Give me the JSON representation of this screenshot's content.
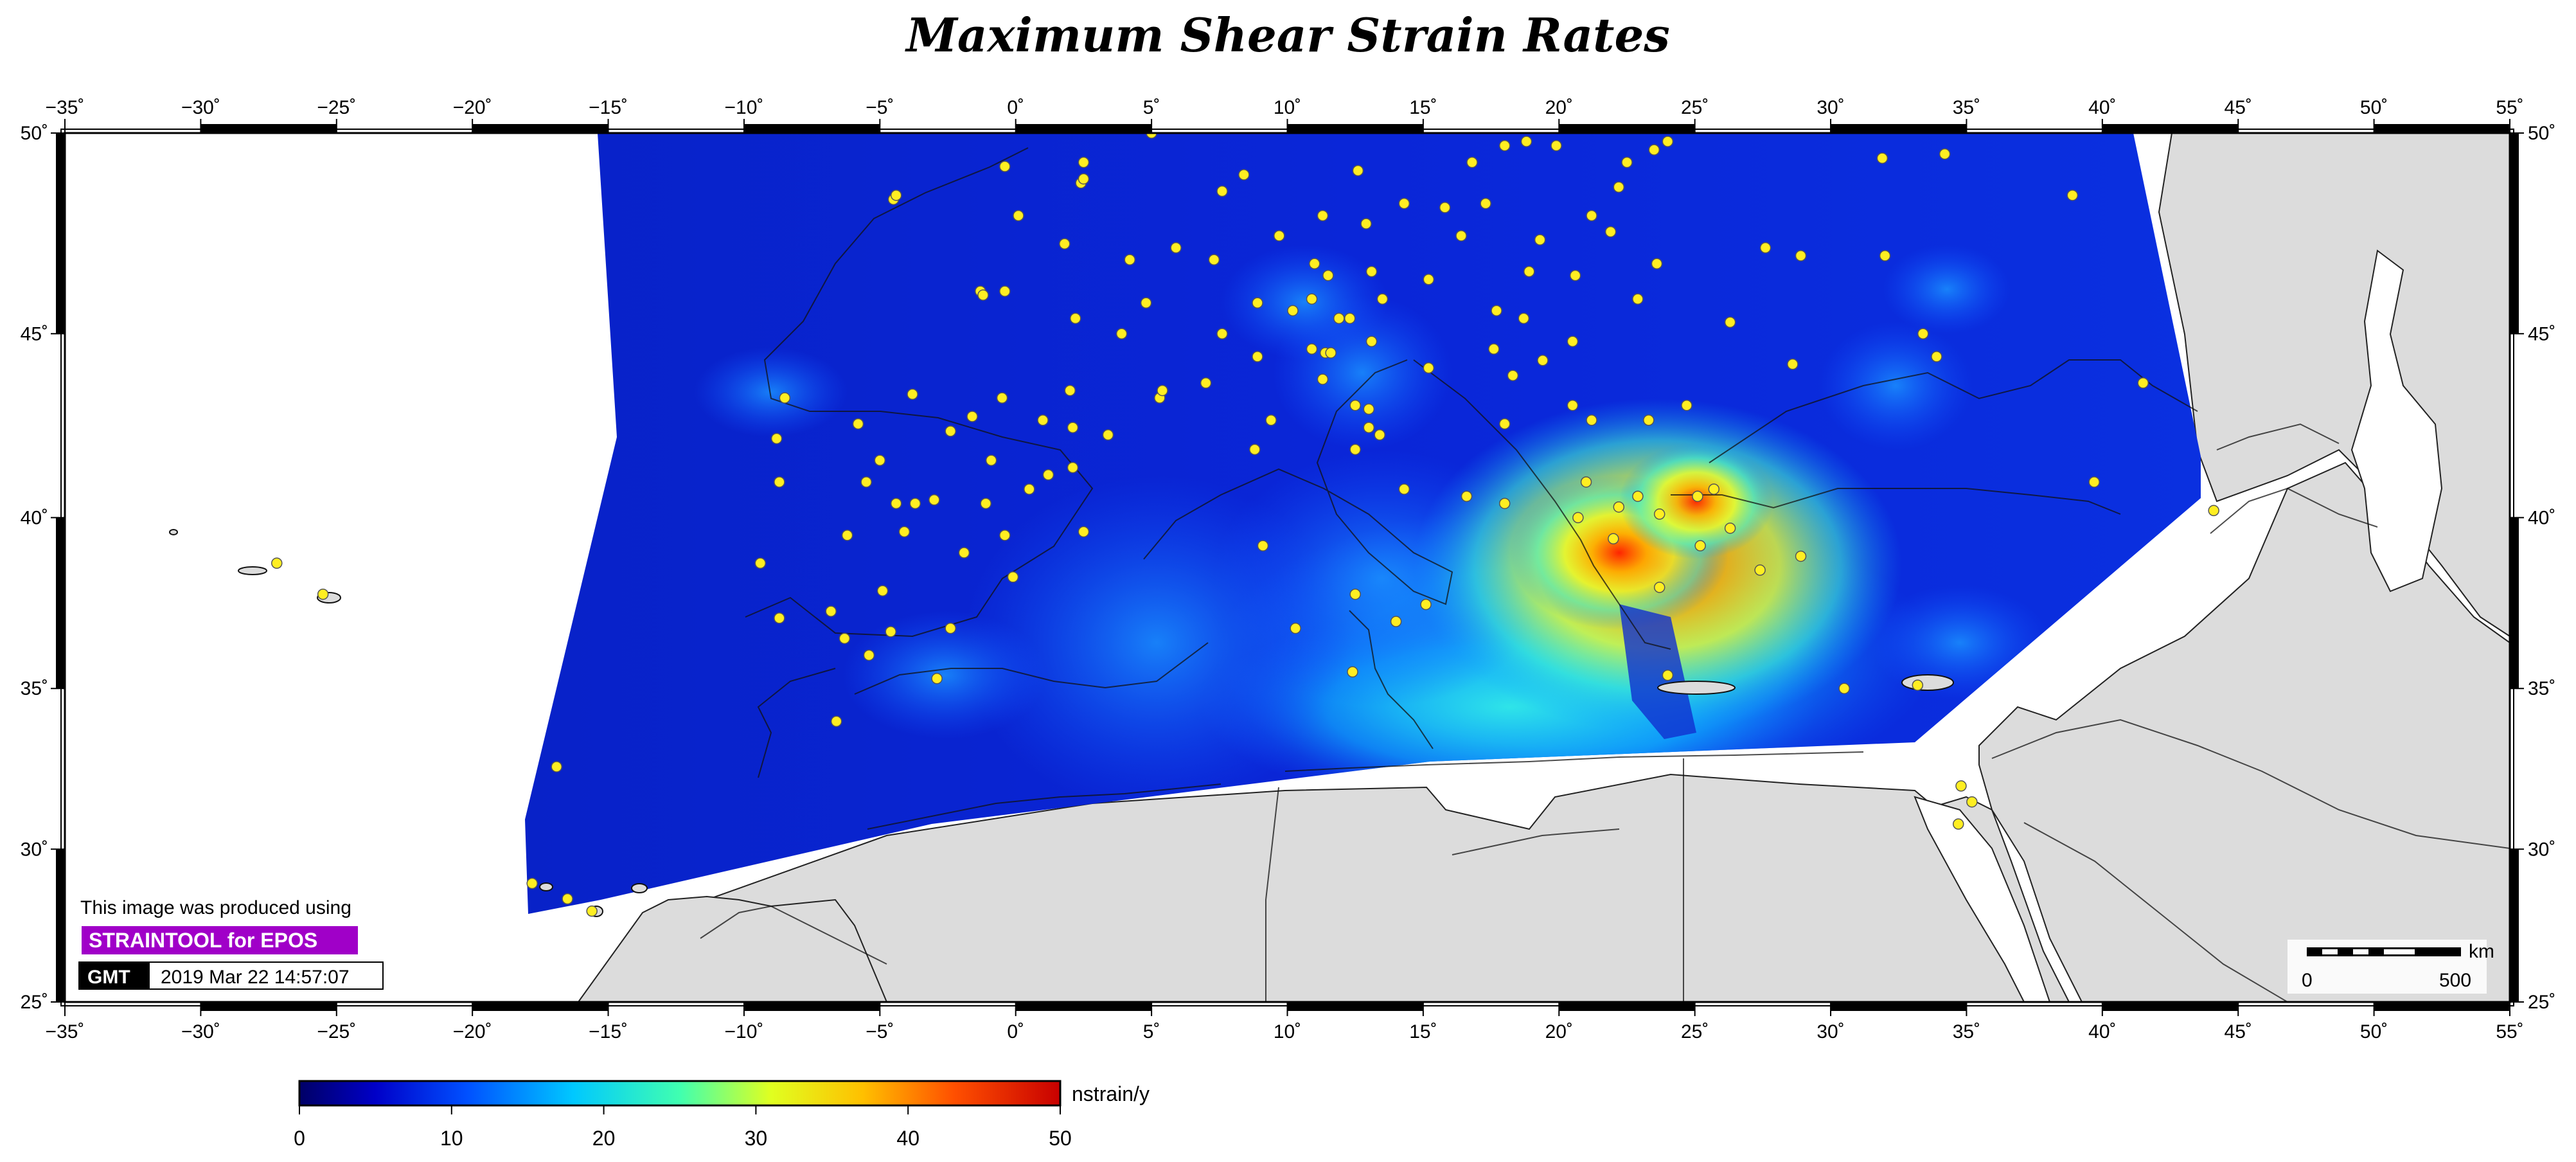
{
  "title": "Maximum Shear Strain Rates",
  "axes": {
    "x_ticks": [
      "−35˚",
      "−30˚",
      "−25˚",
      "−20˚",
      "−15˚",
      "−10˚",
      "−5˚",
      "0˚",
      "5˚",
      "10˚",
      "15˚",
      "20˚",
      "25˚",
      "30˚",
      "35˚",
      "40˚",
      "45˚",
      "50˚",
      "55˚"
    ],
    "y_ticks": [
      "25˚",
      "30˚",
      "35˚",
      "40˚",
      "45˚",
      "50˚"
    ],
    "lon_range": [
      -35,
      55
    ],
    "lat_range": [
      25,
      50
    ]
  },
  "colorbar": {
    "unit": "nstrain/y",
    "ticks": [
      "0",
      "10",
      "20",
      "30",
      "40",
      "50"
    ],
    "range": [
      0,
      50
    ]
  },
  "credits": {
    "line": "This image was produced using",
    "badge": "STRAINTOOL for EPOS",
    "logo": "GMT",
    "timestamp": "2019 Mar 22 14:57:07"
  },
  "scale_bar": {
    "unit": "km",
    "start": "0",
    "end": "500"
  },
  "colors": {
    "land": "#dcdcdc",
    "station": "#ffee22",
    "low_strain": "#0a22d8",
    "high_strain": "#e01010"
  },
  "hotspots": [
    {
      "lon": 22.5,
      "lat": 39.3,
      "value": 46
    },
    {
      "lon": 25.5,
      "lat": 40.3,
      "value": 40
    },
    {
      "lon": 24.0,
      "lat": 37.5,
      "value": 22
    },
    {
      "lon": 12.5,
      "lat": 43.0,
      "value": 14
    },
    {
      "lon": -8.5,
      "lat": 43.2,
      "value": 12
    }
  ],
  "stations": [
    {
      "lon": -27.2,
      "lat": 38.7
    },
    {
      "lon": -25.5,
      "lat": 37.8
    },
    {
      "lon": -16.9,
      "lat": 32.6
    },
    {
      "lon": -17.8,
      "lat": 28.9
    },
    {
      "lon": -16.5,
      "lat": 28.4
    },
    {
      "lon": -15.6,
      "lat": 28.0
    },
    {
      "lon": -8.5,
      "lat": 43.3
    },
    {
      "lon": -8.8,
      "lat": 42.2
    },
    {
      "lon": -8.7,
      "lat": 41.0
    },
    {
      "lon": -9.4,
      "lat": 38.7
    },
    {
      "lon": -8.7,
      "lat": 37.1
    },
    {
      "lon": -6.8,
      "lat": 37.3
    },
    {
      "lon": -6.3,
      "lat": 36.5
    },
    {
      "lon": -5.4,
      "lat": 36.0
    },
    {
      "lon": -4.6,
      "lat": 36.7
    },
    {
      "lon": -2.9,
      "lat": 35.3
    },
    {
      "lon": -6.6,
      "lat": 34.0
    },
    {
      "lon": -2.4,
      "lat": 36.8
    },
    {
      "lon": -4.9,
      "lat": 37.9
    },
    {
      "lon": -6.2,
      "lat": 39.5
    },
    {
      "lon": -5.5,
      "lat": 41.0
    },
    {
      "lon": -5.0,
      "lat": 41.6
    },
    {
      "lon": -4.4,
      "lat": 40.4
    },
    {
      "lon": -3.7,
      "lat": 40.4
    },
    {
      "lon": -3.0,
      "lat": 40.5
    },
    {
      "lon": -4.1,
      "lat": 39.6
    },
    {
      "lon": -1.9,
      "lat": 39.0
    },
    {
      "lon": -0.4,
      "lat": 39.5
    },
    {
      "lon": -0.1,
      "lat": 38.3
    },
    {
      "lon": -1.1,
      "lat": 40.4
    },
    {
      "lon": 0.5,
      "lat": 40.8
    },
    {
      "lon": 1.2,
      "lat": 41.2
    },
    {
      "lon": 2.1,
      "lat": 41.4
    },
    {
      "lon": -0.9,
      "lat": 41.6
    },
    {
      "lon": -2.4,
      "lat": 42.4
    },
    {
      "lon": -1.6,
      "lat": 42.8
    },
    {
      "lon": -3.8,
      "lat": 43.4
    },
    {
      "lon": -5.8,
      "lat": 42.6
    },
    {
      "lon": -0.5,
      "lat": 43.3
    },
    {
      "lon": 1.0,
      "lat": 42.7
    },
    {
      "lon": 2.0,
      "lat": 43.5
    },
    {
      "lon": 2.1,
      "lat": 42.5
    },
    {
      "lon": 3.4,
      "lat": 42.3
    },
    {
      "lon": 5.3,
      "lat": 43.3
    },
    {
      "lon": 5.4,
      "lat": 43.5
    },
    {
      "lon": 7.0,
      "lat": 43.7
    },
    {
      "lon": 2.5,
      "lat": 39.6
    },
    {
      "lon": 3.9,
      "lat": 45.0
    },
    {
      "lon": 2.2,
      "lat": 45.4
    },
    {
      "lon": -1.3,
      "lat": 46.1
    },
    {
      "lon": -1.2,
      "lat": 46.0
    },
    {
      "lon": -0.4,
      "lat": 46.1
    },
    {
      "lon": -4.5,
      "lat": 48.4
    },
    {
      "lon": -4.4,
      "lat": 48.5
    },
    {
      "lon": -0.4,
      "lat": 49.2
    },
    {
      "lon": 0.1,
      "lat": 48.0
    },
    {
      "lon": 1.8,
      "lat": 47.3
    },
    {
      "lon": 2.4,
      "lat": 48.8
    },
    {
      "lon": 2.5,
      "lat": 49.3
    },
    {
      "lon": 2.5,
      "lat": 48.9
    },
    {
      "lon": 4.2,
      "lat": 46.9
    },
    {
      "lon": 4.8,
      "lat": 45.8
    },
    {
      "lon": 5.0,
      "lat": 50.0
    },
    {
      "lon": 5.9,
      "lat": 47.2
    },
    {
      "lon": 7.3,
      "lat": 46.9
    },
    {
      "lon": 7.6,
      "lat": 48.6
    },
    {
      "lon": 8.4,
      "lat": 49.0
    },
    {
      "lon": 7.6,
      "lat": 45.0
    },
    {
      "lon": 8.9,
      "lat": 45.8
    },
    {
      "lon": 9.7,
      "lat": 47.5
    },
    {
      "lon": 8.9,
      "lat": 44.4
    },
    {
      "lon": 10.2,
      "lat": 45.6
    },
    {
      "lon": 10.9,
      "lat": 44.6
    },
    {
      "lon": 11.4,
      "lat": 44.5
    },
    {
      "lon": 11.6,
      "lat": 44.5
    },
    {
      "lon": 11.3,
      "lat": 43.8
    },
    {
      "lon": 11.9,
      "lat": 45.4
    },
    {
      "lon": 12.3,
      "lat": 45.4
    },
    {
      "lon": 11.5,
      "lat": 46.5
    },
    {
      "lon": 11.3,
      "lat": 48.0
    },
    {
      "lon": 12.9,
      "lat": 47.8
    },
    {
      "lon": 12.6,
      "lat": 49.1
    },
    {
      "lon": 13.1,
      "lat": 46.6
    },
    {
      "lon": 13.5,
      "lat": 45.9
    },
    {
      "lon": 11.0,
      "lat": 46.8
    },
    {
      "lon": 10.9,
      "lat": 45.9
    },
    {
      "lon": 12.5,
      "lat": 41.9
    },
    {
      "lon": 12.5,
      "lat": 43.1
    },
    {
      "lon": 13.0,
      "lat": 42.5
    },
    {
      "lon": 13.4,
      "lat": 42.3
    },
    {
      "lon": 13.0,
      "lat": 43.0
    },
    {
      "lon": 14.3,
      "lat": 40.8
    },
    {
      "lon": 13.1,
      "lat": 44.8
    },
    {
      "lon": 15.2,
      "lat": 44.1
    },
    {
      "lon": 15.2,
      "lat": 46.4
    },
    {
      "lon": 16.4,
      "lat": 47.5
    },
    {
      "lon": 15.8,
      "lat": 48.2
    },
    {
      "lon": 14.3,
      "lat": 48.3
    },
    {
      "lon": 16.8,
      "lat": 49.3
    },
    {
      "lon": 17.3,
      "lat": 48.3
    },
    {
      "lon": 18.0,
      "lat": 49.7
    },
    {
      "lon": 18.8,
      "lat": 49.8
    },
    {
      "lon": 19.9,
      "lat": 49.7
    },
    {
      "lon": 19.3,
      "lat": 47.4
    },
    {
      "lon": 18.9,
      "lat": 46.6
    },
    {
      "lon": 17.7,
      "lat": 45.6
    },
    {
      "lon": 18.7,
      "lat": 45.4
    },
    {
      "lon": 17.6,
      "lat": 44.6
    },
    {
      "lon": 18.3,
      "lat": 43.9
    },
    {
      "lon": 19.4,
      "lat": 44.3
    },
    {
      "lon": 20.5,
      "lat": 44.8
    },
    {
      "lon": 20.6,
      "lat": 46.5
    },
    {
      "lon": 21.9,
      "lat": 47.6
    },
    {
      "lon": 22.2,
      "lat": 48.7
    },
    {
      "lon": 22.5,
      "lat": 49.3
    },
    {
      "lon": 23.5,
      "lat": 49.6
    },
    {
      "lon": 24.0,
      "lat": 49.8
    },
    {
      "lon": 21.2,
      "lat": 48.0
    },
    {
      "lon": 23.6,
      "lat": 46.8
    },
    {
      "lon": 22.9,
      "lat": 45.9
    },
    {
      "lon": 20.5,
      "lat": 43.1
    },
    {
      "lon": 21.2,
      "lat": 42.7
    },
    {
      "lon": 18.0,
      "lat": 42.6
    },
    {
      "lon": 21.0,
      "lat": 41.0
    },
    {
      "lon": 22.9,
      "lat": 40.6
    },
    {
      "lon": 23.7,
      "lat": 40.1
    },
    {
      "lon": 22.2,
      "lat": 40.3
    },
    {
      "lon": 20.7,
      "lat": 40.0
    },
    {
      "lon": 22.0,
      "lat": 39.4
    },
    {
      "lon": 23.7,
      "lat": 38.0
    },
    {
      "lon": 24.0,
      "lat": 35.4
    },
    {
      "lon": 25.2,
      "lat": 39.2
    },
    {
      "lon": 25.7,
      "lat": 40.8
    },
    {
      "lon": 26.3,
      "lat": 39.7
    },
    {
      "lon": 25.1,
      "lat": 40.6
    },
    {
      "lon": 23.3,
      "lat": 42.7
    },
    {
      "lon": 24.7,
      "lat": 43.1
    },
    {
      "lon": 26.3,
      "lat": 45.3
    },
    {
      "lon": 27.6,
      "lat": 47.2
    },
    {
      "lon": 28.6,
      "lat": 44.2
    },
    {
      "lon": 28.9,
      "lat": 47.0
    },
    {
      "lon": 31.9,
      "lat": 49.4
    },
    {
      "lon": 32.0,
      "lat": 47.0
    },
    {
      "lon": 33.9,
      "lat": 44.4
    },
    {
      "lon": 34.2,
      "lat": 49.5
    },
    {
      "lon": 33.4,
      "lat": 45.0
    },
    {
      "lon": 38.9,
      "lat": 48.5
    },
    {
      "lon": 39.7,
      "lat": 41.0
    },
    {
      "lon": 41.5,
      "lat": 43.7
    },
    {
      "lon": 44.1,
      "lat": 40.2
    },
    {
      "lon": 18.0,
      "lat": 40.4
    },
    {
      "lon": 16.6,
      "lat": 40.6
    },
    {
      "lon": 15.1,
      "lat": 37.5
    },
    {
      "lon": 12.5,
      "lat": 37.8
    },
    {
      "lon": 12.4,
      "lat": 35.5
    },
    {
      "lon": 14.0,
      "lat": 37.0
    },
    {
      "lon": 9.1,
      "lat": 39.2
    },
    {
      "lon": 8.8,
      "lat": 41.9
    },
    {
      "lon": 9.4,
      "lat": 42.7
    },
    {
      "lon": 33.2,
      "lat": 35.1
    },
    {
      "lon": 34.8,
      "lat": 32.0
    },
    {
      "lon": 35.2,
      "lat": 31.5
    },
    {
      "lon": 34.7,
      "lat": 30.8
    },
    {
      "lon": 30.5,
      "lat": 35.0
    },
    {
      "lon": 27.4,
      "lat": 38.5
    },
    {
      "lon": 28.9,
      "lat": 38.9
    },
    {
      "lon": 10.3,
      "lat": 36.8
    }
  ]
}
